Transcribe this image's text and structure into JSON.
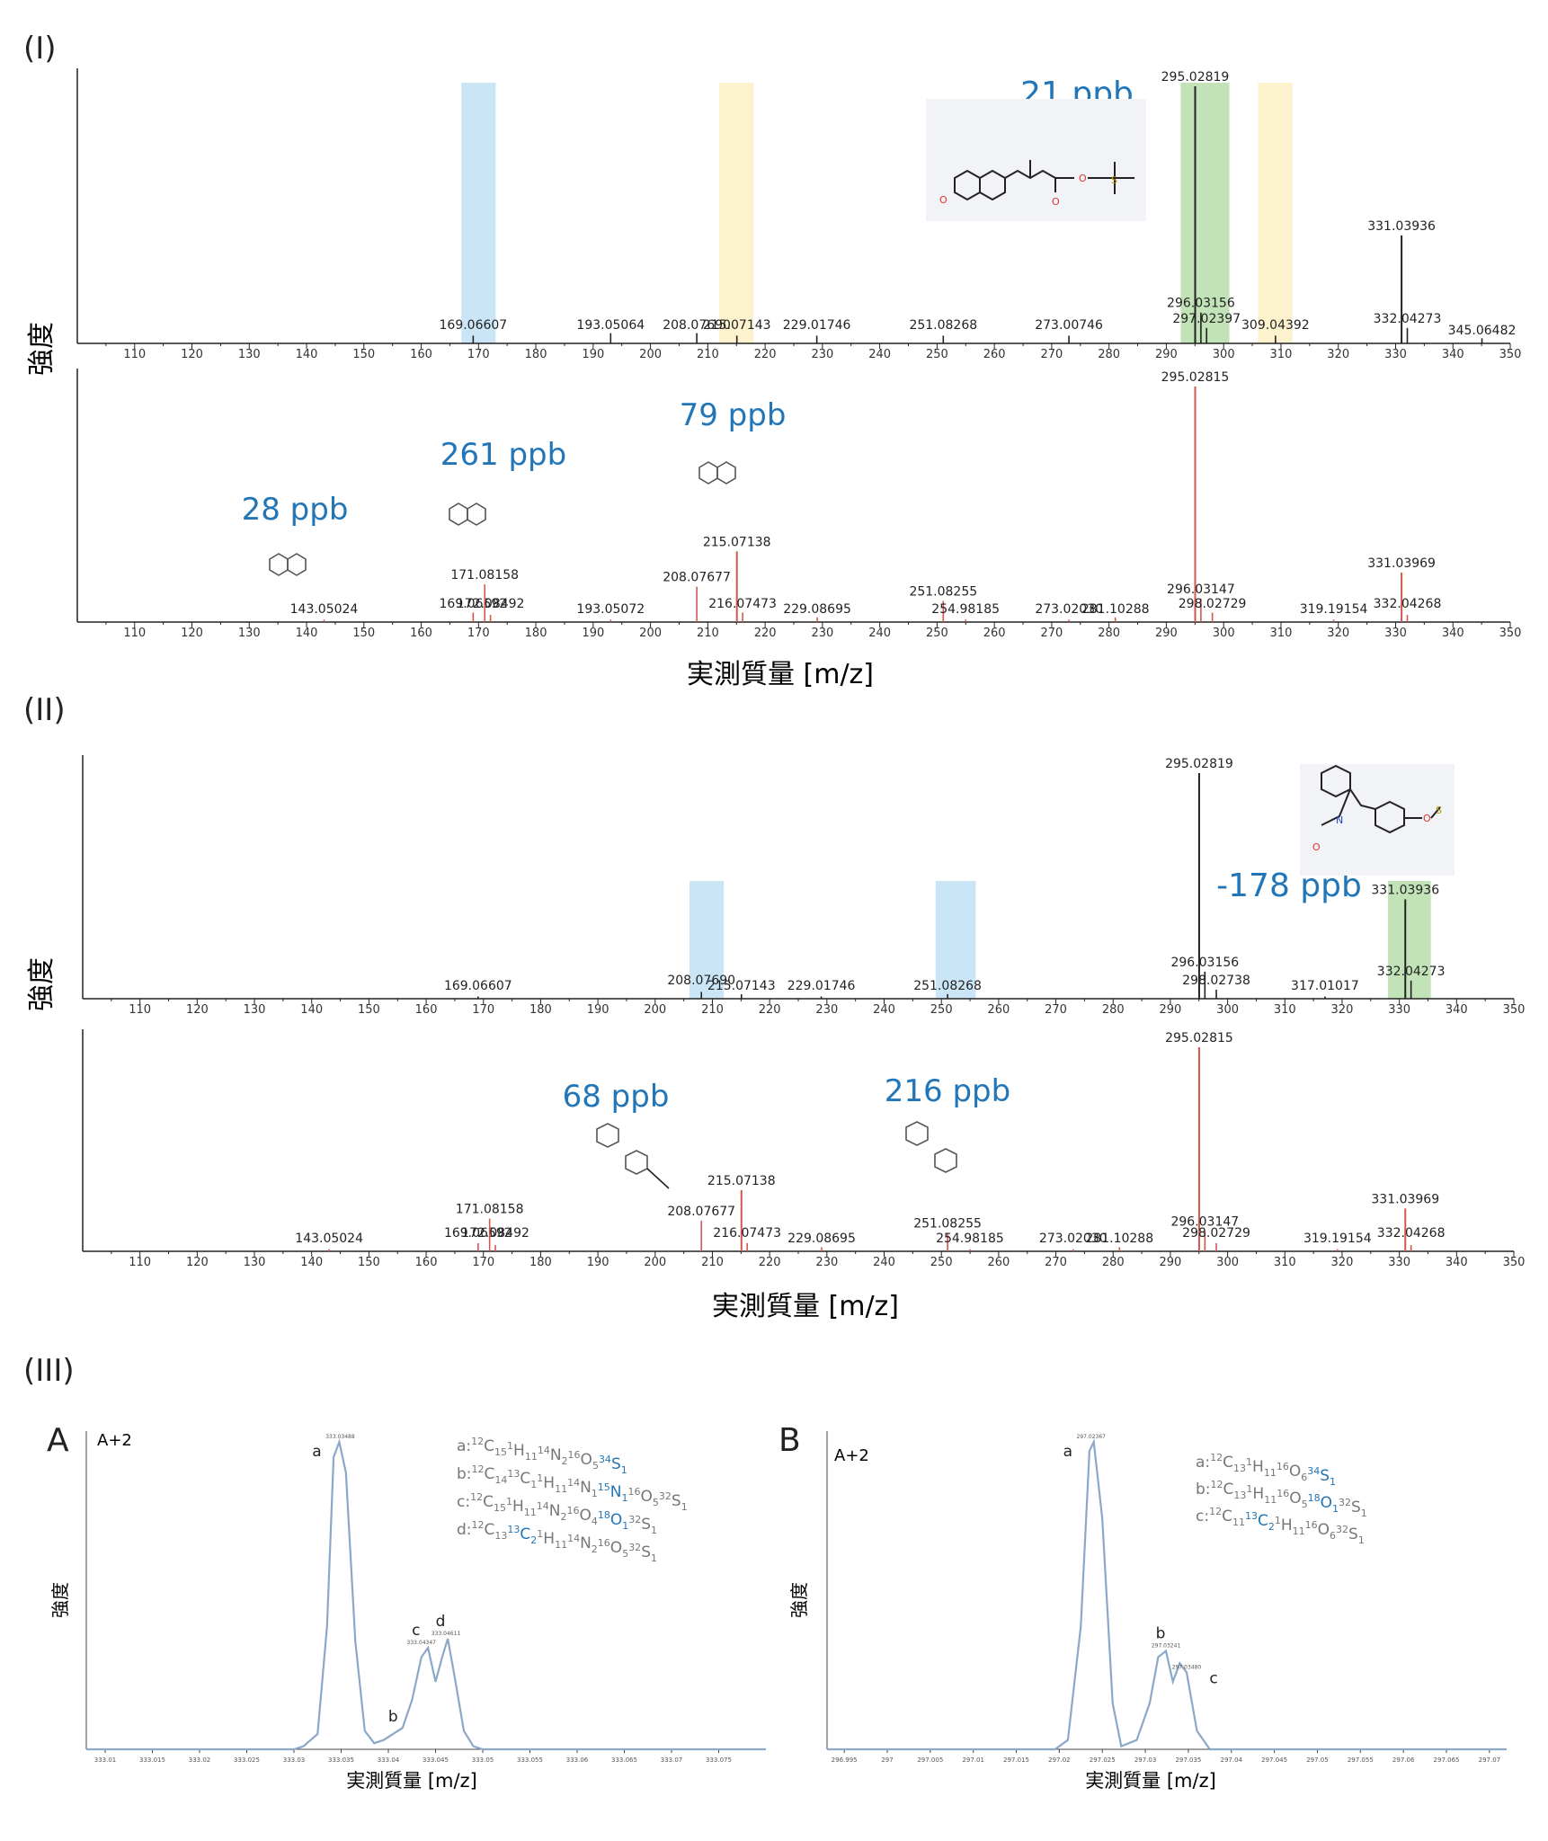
{
  "panels": {
    "I": "(I)",
    "II": "(II)",
    "III": "(III)",
    "A": "A",
    "B": "B"
  },
  "axis_text": {
    "intensity": "強度",
    "xlabel_main": "実測質量 [m/z]",
    "xlabel_iso": "実測質量 [m/z]"
  },
  "colors": {
    "measured": "#222222",
    "theoretical": "#d2574f",
    "ppb_text": "#2276b7",
    "highlight_green": "#b7deaa",
    "highlight_blue": "#bfe0f4",
    "highlight_yellow": "#fbf1c5",
    "iso_line": "#8ca8c8",
    "formula_text": "#777777",
    "formula_blue": "#2276b7"
  },
  "chart_data": [
    {
      "id": "I-top",
      "type": "bar",
      "title": "",
      "xlim": [
        100,
        350
      ],
      "xticks": [
        110,
        120,
        130,
        140,
        150,
        160,
        170,
        180,
        190,
        200,
        210,
        220,
        230,
        240,
        250,
        260,
        270,
        280,
        290,
        300,
        310,
        320,
        330,
        340,
        350
      ],
      "peaks": [
        {
          "x": 169.06607,
          "y": 3,
          "label": "169.06607"
        },
        {
          "x": 193.05064,
          "y": 4,
          "label": "193.05064"
        },
        {
          "x": 208.0769,
          "y": 4,
          "label": "208.07690"
        },
        {
          "x": 215.07143,
          "y": 3,
          "label": "215.07143"
        },
        {
          "x": 229.01746,
          "y": 3,
          "label": "229.01746"
        },
        {
          "x": 251.08268,
          "y": 3,
          "label": "251.08268"
        },
        {
          "x": 273.00746,
          "y": 3,
          "label": "273.00746"
        },
        {
          "x": 295.02819,
          "y": 100,
          "label": "295.02819"
        },
        {
          "x": 296.03156,
          "y": 12,
          "label": "296.03156"
        },
        {
          "x": 297.02397,
          "y": 6,
          "label": "297.02397"
        },
        {
          "x": 309.04392,
          "y": 3,
          "label": "309.04392"
        },
        {
          "x": 331.03936,
          "y": 42,
          "label": "331.03936"
        },
        {
          "x": 332.04273,
          "y": 6,
          "label": "332.04273"
        },
        {
          "x": 345.06482,
          "y": 2,
          "label": "345.06482"
        }
      ],
      "highlights": [
        {
          "from": 292.5,
          "to": 301,
          "color": "green"
        },
        {
          "from": 167,
          "to": 173,
          "color": "blue"
        },
        {
          "from": 212,
          "to": 218,
          "color": "yellow"
        },
        {
          "from": 306,
          "to": 312,
          "color": "yellow"
        }
      ],
      "annotations": [
        {
          "text": "21 ppb"
        }
      ]
    },
    {
      "id": "I-bottom",
      "type": "bar",
      "xlim": [
        100,
        350
      ],
      "xticks": [
        110,
        120,
        130,
        140,
        150,
        160,
        170,
        180,
        190,
        200,
        210,
        220,
        230,
        240,
        250,
        260,
        270,
        280,
        290,
        300,
        310,
        320,
        330,
        340,
        350
      ],
      "peaks": [
        {
          "x": 143.05024,
          "y": 1,
          "label": "143.05024"
        },
        {
          "x": 169.06592,
          "y": 4,
          "label": "169.06592"
        },
        {
          "x": 171.08158,
          "y": 16,
          "label": "171.08158"
        },
        {
          "x": 172.08492,
          "y": 3,
          "label": "172.08492"
        },
        {
          "x": 193.05072,
          "y": 1,
          "label": "193.05072"
        },
        {
          "x": 208.07677,
          "y": 15,
          "label": "208.07677"
        },
        {
          "x": 215.07138,
          "y": 30,
          "label": "215.07138"
        },
        {
          "x": 216.07473,
          "y": 4,
          "label": "216.07473"
        },
        {
          "x": 229.08695,
          "y": 2,
          "label": "229.08695"
        },
        {
          "x": 251.08255,
          "y": 9,
          "label": "251.08255"
        },
        {
          "x": 254.98185,
          "y": 1,
          "label": "254.98185"
        },
        {
          "x": 273.0203,
          "y": 1,
          "label": "273.02030"
        },
        {
          "x": 281.10288,
          "y": 2,
          "label": "281.10288"
        },
        {
          "x": 295.02815,
          "y": 100,
          "label": "295.02815"
        },
        {
          "x": 296.03147,
          "y": 10,
          "label": "296.03147"
        },
        {
          "x": 298.02729,
          "y": 4,
          "label": "298.02729"
        },
        {
          "x": 319.19154,
          "y": 1,
          "label": "319.19154"
        },
        {
          "x": 331.03969,
          "y": 21,
          "label": "331.03969"
        },
        {
          "x": 332.04268,
          "y": 3,
          "label": "332.04268"
        }
      ],
      "annotations": [
        {
          "text": "28 ppb"
        },
        {
          "text": "261 ppb"
        },
        {
          "text": "79 ppb"
        }
      ]
    },
    {
      "id": "II-top",
      "type": "bar",
      "xlim": [
        100,
        350
      ],
      "xticks": [
        110,
        120,
        130,
        140,
        150,
        160,
        170,
        180,
        190,
        200,
        210,
        220,
        230,
        240,
        250,
        260,
        270,
        280,
        290,
        300,
        310,
        320,
        330,
        340,
        350
      ],
      "peaks": [
        {
          "x": 169.06607,
          "y": 1,
          "label": "169.06607"
        },
        {
          "x": 208.0769,
          "y": 3,
          "label": "208.07690"
        },
        {
          "x": 215.07143,
          "y": 2,
          "label": "215.07143"
        },
        {
          "x": 229.01746,
          "y": 1,
          "label": "229.01746"
        },
        {
          "x": 251.08268,
          "y": 2,
          "label": "251.08268"
        },
        {
          "x": 295.02819,
          "y": 100,
          "label": "295.02819"
        },
        {
          "x": 296.03156,
          "y": 12,
          "label": "296.03156"
        },
        {
          "x": 298.02738,
          "y": 4,
          "label": "298.02738"
        },
        {
          "x": 317.01017,
          "y": 1,
          "label": "317.01017"
        },
        {
          "x": 331.03936,
          "y": 44,
          "label": "331.03936"
        },
        {
          "x": 332.04273,
          "y": 8,
          "label": "332.04273"
        }
      ],
      "highlights": [
        {
          "from": 328,
          "to": 335.5,
          "color": "green"
        },
        {
          "from": 206,
          "to": 212,
          "color": "blue"
        },
        {
          "from": 249,
          "to": 256,
          "color": "blue"
        }
      ],
      "annotations": [
        {
          "text": "-178 ppb"
        }
      ]
    },
    {
      "id": "II-bottom",
      "type": "bar",
      "xlim": [
        100,
        350
      ],
      "xticks": [
        110,
        120,
        130,
        140,
        150,
        160,
        170,
        180,
        190,
        200,
        210,
        220,
        230,
        240,
        250,
        260,
        270,
        280,
        290,
        300,
        310,
        320,
        330,
        340,
        350
      ],
      "peaks": [
        {
          "x": 143.05024,
          "y": 1,
          "label": "143.05024"
        },
        {
          "x": 169.06592,
          "y": 4,
          "label": "169.06592"
        },
        {
          "x": 171.08158,
          "y": 16,
          "label": "171.08158"
        },
        {
          "x": 172.08492,
          "y": 3,
          "label": "172.08492"
        },
        {
          "x": 208.07677,
          "y": 15,
          "label": "208.07677"
        },
        {
          "x": 215.07138,
          "y": 30,
          "label": "215.07138"
        },
        {
          "x": 216.07473,
          "y": 4,
          "label": "216.07473"
        },
        {
          "x": 229.08695,
          "y": 2,
          "label": "229.08695"
        },
        {
          "x": 251.08255,
          "y": 9,
          "label": "251.08255"
        },
        {
          "x": 254.98185,
          "y": 1,
          "label": "254.98185"
        },
        {
          "x": 273.0203,
          "y": 1,
          "label": "273.02030"
        },
        {
          "x": 281.10288,
          "y": 2,
          "label": "281.10288"
        },
        {
          "x": 295.02815,
          "y": 100,
          "label": "295.02815"
        },
        {
          "x": 296.03147,
          "y": 10,
          "label": "296.03147"
        },
        {
          "x": 298.02729,
          "y": 4,
          "label": "298.02729"
        },
        {
          "x": 319.19154,
          "y": 1,
          "label": "319.19154"
        },
        {
          "x": 331.03969,
          "y": 21,
          "label": "331.03969"
        },
        {
          "x": 332.04268,
          "y": 3,
          "label": "332.04268"
        }
      ],
      "annotations": [
        {
          "text": "68 ppb"
        },
        {
          "text": "216 ppb"
        }
      ]
    },
    {
      "id": "III-A",
      "type": "line",
      "corner_label": "A+2",
      "xlim": [
        333.008,
        333.08
      ],
      "ylim": [
        0,
        100
      ],
      "xticks": [
        333.01,
        333.015,
        333.02,
        333.025,
        333.03,
        333.035,
        333.04,
        333.045,
        333.05,
        333.055,
        333.06,
        333.065,
        333.07,
        333.075
      ],
      "xtick_labels": [
        "333.01",
        "333.015",
        "333.02",
        "333.025",
        "333.03",
        "333.035",
        "333.04",
        "333.045",
        "333.05",
        "333.055",
        "333.06",
        "333.065",
        "333.07",
        "333.075"
      ],
      "x": [
        333.03,
        333.031,
        333.0325,
        333.0335,
        333.0342,
        333.0348,
        333.0355,
        333.0365,
        333.0375,
        333.0385,
        333.0395,
        333.0405,
        333.0415,
        333.0425,
        333.0435,
        333.0442,
        333.045,
        333.0457,
        333.0463,
        333.047,
        333.048,
        333.049,
        333.05
      ],
      "y": [
        0,
        1,
        5,
        40,
        95,
        100,
        90,
        35,
        6,
        2,
        3,
        5,
        7,
        16,
        30,
        33,
        22,
        30,
        36,
        24,
        6,
        1,
        0
      ],
      "peak_labels": [
        {
          "letter": "a",
          "x": 333.0349,
          "y": 100,
          "value": "333.03488"
        },
        {
          "letter": "b",
          "x": 333.0405,
          "y": 5,
          "value": ""
        },
        {
          "letter": "c",
          "x": 333.0435,
          "y": 33,
          "value": "333.04347"
        },
        {
          "letter": "d",
          "x": 333.0461,
          "y": 36,
          "value": "333.04611"
        }
      ],
      "legend": [
        {
          "key": "a:",
          "parts": [
            [
              "12",
              "C"
            ],
            [
              "15",
              ""
            ],
            [
              "1",
              "H"
            ],
            [
              "11",
              ""
            ],
            [
              "14",
              "N"
            ],
            [
              "2",
              ""
            ],
            [
              "16",
              "O"
            ],
            [
              "5",
              ""
            ],
            [
              "34",
              "S",
              "blue"
            ],
            [
              "1",
              "",
              "blue"
            ]
          ]
        },
        {
          "key": "b:",
          "parts": [
            [
              "12",
              "C"
            ],
            [
              "14",
              ""
            ],
            [
              "13",
              "C"
            ],
            [
              "1",
              ""
            ],
            [
              "1",
              "H"
            ],
            [
              "11",
              ""
            ],
            [
              "14",
              "N"
            ],
            [
              "1",
              ""
            ],
            [
              "15",
              "N",
              "blue"
            ],
            [
              "1",
              "",
              "blue"
            ],
            [
              "16",
              "O"
            ],
            [
              "5",
              ""
            ],
            [
              "32",
              "S"
            ],
            [
              "1",
              ""
            ]
          ]
        },
        {
          "key": "c:",
          "parts": [
            [
              "12",
              "C"
            ],
            [
              "15",
              ""
            ],
            [
              "1",
              "H"
            ],
            [
              "11",
              ""
            ],
            [
              "14",
              "N"
            ],
            [
              "2",
              ""
            ],
            [
              "16",
              "O"
            ],
            [
              "4",
              ""
            ],
            [
              "18",
              "O",
              "blue"
            ],
            [
              "1",
              "",
              "blue"
            ],
            [
              "32",
              "S"
            ],
            [
              "1",
              ""
            ]
          ]
        },
        {
          "key": "d:",
          "parts": [
            [
              "12",
              "C"
            ],
            [
              "13",
              ""
            ],
            [
              "13",
              "C",
              "blue"
            ],
            [
              "2",
              "",
              "blue"
            ],
            [
              "1",
              "H"
            ],
            [
              "11",
              ""
            ],
            [
              "14",
              "N"
            ],
            [
              "2",
              ""
            ],
            [
              "16",
              "O"
            ],
            [
              "5",
              ""
            ],
            [
              "32",
              "S"
            ],
            [
              "1",
              ""
            ]
          ]
        }
      ]
    },
    {
      "id": "III-B",
      "type": "line",
      "corner_label": "A+2",
      "xlim": [
        296.993,
        297.072
      ],
      "ylim": [
        0,
        100
      ],
      "xticks": [
        296.995,
        297,
        297.005,
        297.01,
        297.015,
        297.02,
        297.025,
        297.03,
        297.035,
        297.04,
        297.045,
        297.05,
        297.055,
        297.06,
        297.065,
        297.07
      ],
      "xtick_labels": [
        "296.995",
        "297",
        "297.005",
        "297.01",
        "297.015",
        "297.02",
        "297.025",
        "297.03",
        "297.035",
        "297.04",
        "297.045",
        "297.05",
        "297.055",
        "297.06",
        "297.065",
        "297.07"
      ],
      "x": [
        297.0195,
        297.021,
        297.0225,
        297.0235,
        297.024,
        297.025,
        297.0262,
        297.0272,
        297.029,
        297.0305,
        297.0315,
        297.0324,
        297.0332,
        297.034,
        297.0348,
        297.036,
        297.0375
      ],
      "y": [
        0,
        3,
        40,
        97,
        100,
        75,
        15,
        1,
        3,
        15,
        30,
        32,
        22,
        28,
        25,
        6,
        0
      ],
      "peak_labels": [
        {
          "letter": "a",
          "x": 297.0237,
          "y": 100,
          "value": "297.02367"
        },
        {
          "letter": "b",
          "x": 297.0324,
          "y": 32,
          "value": "297.03241"
        },
        {
          "letter": "c",
          "x": 297.0348,
          "y": 25,
          "value": "297.03480"
        }
      ],
      "legend": [
        {
          "key": "a:",
          "parts": [
            [
              "12",
              "C"
            ],
            [
              "13",
              ""
            ],
            [
              "1",
              "H"
            ],
            [
              "11",
              ""
            ],
            [
              "16",
              "O"
            ],
            [
              "6",
              ""
            ],
            [
              "34",
              "S",
              "blue"
            ],
            [
              "1",
              "",
              "blue"
            ]
          ]
        },
        {
          "key": "b:",
          "parts": [
            [
              "12",
              "C"
            ],
            [
              "13",
              ""
            ],
            [
              "1",
              "H"
            ],
            [
              "11",
              ""
            ],
            [
              "16",
              "O"
            ],
            [
              "5",
              ""
            ],
            [
              "18",
              "O",
              "blue"
            ],
            [
              "1",
              "",
              "blue"
            ],
            [
              "32",
              "S"
            ],
            [
              "1",
              ""
            ]
          ]
        },
        {
          "key": "c:",
          "parts": [
            [
              "12",
              "C"
            ],
            [
              "11",
              ""
            ],
            [
              "13",
              "C",
              "blue"
            ],
            [
              "2",
              "",
              "blue"
            ],
            [
              "1",
              "H"
            ],
            [
              "11",
              ""
            ],
            [
              "16",
              "O"
            ],
            [
              "6",
              ""
            ],
            [
              "32",
              "S"
            ],
            [
              "1",
              ""
            ]
          ]
        }
      ]
    }
  ]
}
